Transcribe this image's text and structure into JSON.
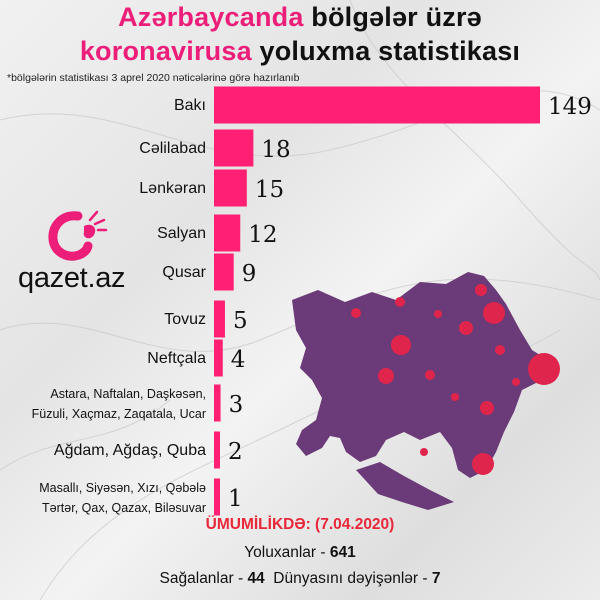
{
  "title": {
    "line1_highlight": "Azərbaycanda",
    "line1_rest": " bölgələr üzrə",
    "line2_highlight": "koronavirusa",
    "line2_rest": " yoluxma statistikası"
  },
  "note": "*bölgələrin statistikası 3 aprel 2020 nəticələrinə görə hazırlanıb",
  "brand": {
    "name": "qazet.az",
    "logo_icon": "qazet-logo-icon",
    "accent": "#ec1e79"
  },
  "colors": {
    "bar": "#ff1f73",
    "map": "#6b3a78",
    "dot": "#e0254c",
    "total_head": "#e8283a"
  },
  "chart_data": {
    "type": "bar",
    "orientation": "horizontal",
    "categories": [
      [
        "Bakı"
      ],
      [
        "Cəlilabad"
      ],
      [
        "Lənkəran"
      ],
      [
        "Salyan"
      ],
      [
        "Qusar"
      ],
      [
        "Tovuz"
      ],
      [
        "Neftçala"
      ],
      [
        "Astara, Naftalan, Daşkəsən,",
        "Füzuli, Xaçmaz, Zaqatala, Ucar"
      ],
      [
        "Ağdam, Ağdaş, Quba"
      ],
      [
        "Masallı, Siyəsən, Xızı, Qəbələ",
        "Tərtər, Qax, Qazax, Biləsuvar"
      ]
    ],
    "values": [
      149,
      18,
      15,
      12,
      9,
      5,
      4,
      3,
      2,
      1
    ],
    "xlim": [
      0,
      149
    ]
  },
  "summary": {
    "heading": "ÜMUMİLİKDƏ: (7.04.2020)",
    "infected_label": "Yoluxanlar - ",
    "infected_value": "641",
    "recovered_label": "Sağalanlar - ",
    "recovered_value": "44",
    "deaths_label": "  Dünyasını dəyişənlər - ",
    "deaths_value": "7"
  }
}
